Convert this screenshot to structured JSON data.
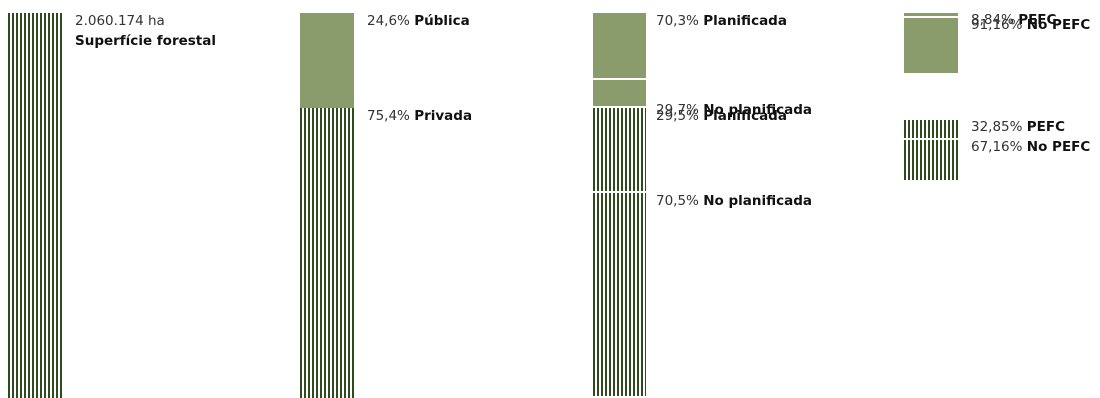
{
  "chart_data": [
    {
      "type": "bar",
      "name": "total",
      "value_ha": 2060174,
      "labels": [
        {
          "value": "2.060.174 ha",
          "text": ""
        },
        {
          "value": "",
          "text": "Superfície forestal"
        }
      ],
      "segments": [
        {
          "pattern": "striped",
          "percent": 100
        }
      ]
    },
    {
      "type": "bar",
      "name": "ownership",
      "segments": [
        {
          "pattern": "solid",
          "percent": 24.6,
          "value": "24,6%",
          "text": "Pública"
        },
        {
          "pattern": "striped",
          "percent": 75.4,
          "value": "75,4%",
          "text": "Privada"
        }
      ]
    },
    {
      "type": "bar",
      "name": "planning",
      "segments": [
        {
          "pattern": "solid",
          "percent": 70.3,
          "value": "70,3%",
          "text": "Planificada"
        },
        {
          "pattern": "solid",
          "percent": 29.7,
          "value": "29,7%",
          "text": "No planificada"
        },
        {
          "pattern": "striped",
          "percent": 29.5,
          "value": "29,5%",
          "text": "Planificada"
        },
        {
          "pattern": "striped",
          "percent": 70.5,
          "value": "70,5%",
          "text": "No planificada"
        }
      ]
    },
    {
      "type": "bar",
      "name": "certification",
      "segments": [
        {
          "pattern": "solid",
          "percent": 8.84,
          "value": "8,84%",
          "text": "PEFC"
        },
        {
          "pattern": "solid",
          "percent": 91.16,
          "value": "91,16%",
          "text": "No PEFC"
        },
        {
          "pattern": "striped",
          "percent": 32.85,
          "value": "32,85%",
          "text": " PEFC"
        },
        {
          "pattern": "striped",
          "percent": 67.16,
          "value": "67,16%",
          "text": "No PEFC"
        }
      ]
    }
  ],
  "colors": {
    "solid": "#8a9b6c",
    "stripe": "#2f4a1c"
  }
}
